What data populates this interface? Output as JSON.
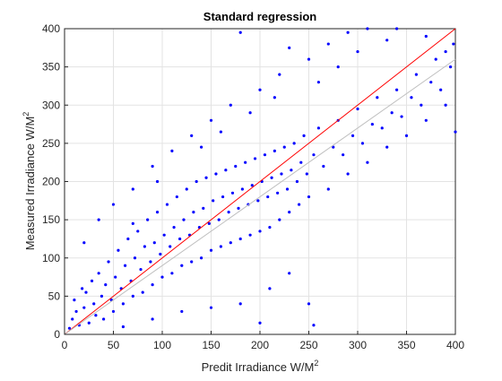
{
  "chart_data": {
    "type": "scatter",
    "title": "Standard regression",
    "xlabel": "Predit Irradiance W/M",
    "ylabel": "Measured Irradiance W/M",
    "unit_superscript": "2",
    "xlim": [
      0,
      400
    ],
    "ylim": [
      0,
      400
    ],
    "x_ticks": [
      0,
      50,
      100,
      150,
      200,
      250,
      300,
      350,
      400
    ],
    "y_ticks": [
      0,
      50,
      100,
      150,
      200,
      250,
      300,
      350,
      400
    ],
    "grid": true,
    "point_color": "#0000ff",
    "reference_lines": [
      {
        "color": "#ff0000",
        "x": [
          0,
          400
        ],
        "y": [
          0,
          400
        ]
      },
      {
        "color": "#bfbfbf",
        "x": [
          0,
          400
        ],
        "y": [
          0,
          360
        ]
      }
    ],
    "series": [
      {
        "points": [
          [
            5,
            8
          ],
          [
            8,
            20
          ],
          [
            10,
            45
          ],
          [
            12,
            30
          ],
          [
            15,
            12
          ],
          [
            18,
            60
          ],
          [
            20,
            35
          ],
          [
            22,
            55
          ],
          [
            25,
            15
          ],
          [
            28,
            70
          ],
          [
            30,
            40
          ],
          [
            32,
            25
          ],
          [
            35,
            80
          ],
          [
            38,
            50
          ],
          [
            40,
            20
          ],
          [
            42,
            65
          ],
          [
            45,
            95
          ],
          [
            48,
            45
          ],
          [
            50,
            30
          ],
          [
            52,
            75
          ],
          [
            55,
            110
          ],
          [
            58,
            60
          ],
          [
            60,
            40
          ],
          [
            62,
            90
          ],
          [
            65,
            125
          ],
          [
            68,
            70
          ],
          [
            70,
            50
          ],
          [
            72,
            100
          ],
          [
            75,
            135
          ],
          [
            78,
            85
          ],
          [
            80,
            55
          ],
          [
            82,
            115
          ],
          [
            85,
            150
          ],
          [
            88,
            95
          ],
          [
            90,
            65
          ],
          [
            92,
            120
          ],
          [
            95,
            160
          ],
          [
            98,
            105
          ],
          [
            100,
            75
          ],
          [
            102,
            130
          ],
          [
            105,
            170
          ],
          [
            108,
            115
          ],
          [
            110,
            80
          ],
          [
            112,
            140
          ],
          [
            115,
            180
          ],
          [
            118,
            125
          ],
          [
            120,
            90
          ],
          [
            122,
            150
          ],
          [
            125,
            190
          ],
          [
            128,
            130
          ],
          [
            130,
            95
          ],
          [
            132,
            160
          ],
          [
            135,
            200
          ],
          [
            138,
            140
          ],
          [
            140,
            100
          ],
          [
            142,
            165
          ],
          [
            145,
            205
          ],
          [
            148,
            145
          ],
          [
            150,
            110
          ],
          [
            152,
            175
          ],
          [
            155,
            210
          ],
          [
            158,
            150
          ],
          [
            160,
            115
          ],
          [
            162,
            180
          ],
          [
            165,
            215
          ],
          [
            168,
            160
          ],
          [
            170,
            120
          ],
          [
            172,
            185
          ],
          [
            175,
            220
          ],
          [
            178,
            165
          ],
          [
            180,
            125
          ],
          [
            182,
            190
          ],
          [
            185,
            225
          ],
          [
            188,
            170
          ],
          [
            190,
            130
          ],
          [
            192,
            195
          ],
          [
            195,
            230
          ],
          [
            198,
            175
          ],
          [
            200,
            135
          ],
          [
            202,
            200
          ],
          [
            205,
            235
          ],
          [
            208,
            180
          ],
          [
            210,
            140
          ],
          [
            212,
            205
          ],
          [
            215,
            240
          ],
          [
            218,
            185
          ],
          [
            220,
            150
          ],
          [
            222,
            210
          ],
          [
            225,
            245
          ],
          [
            228,
            190
          ],
          [
            230,
            160
          ],
          [
            232,
            215
          ],
          [
            235,
            250
          ],
          [
            238,
            200
          ],
          [
            240,
            170
          ],
          [
            242,
            225
          ],
          [
            245,
            260
          ],
          [
            248,
            210
          ],
          [
            250,
            180
          ],
          [
            255,
            235
          ],
          [
            260,
            270
          ],
          [
            265,
            220
          ],
          [
            270,
            190
          ],
          [
            275,
            245
          ],
          [
            280,
            280
          ],
          [
            285,
            235
          ],
          [
            290,
            210
          ],
          [
            295,
            260
          ],
          [
            300,
            295
          ],
          [
            305,
            250
          ],
          [
            310,
            225
          ],
          [
            315,
            275
          ],
          [
            320,
            310
          ],
          [
            325,
            270
          ],
          [
            330,
            245
          ],
          [
            335,
            290
          ],
          [
            340,
            320
          ],
          [
            345,
            285
          ],
          [
            350,
            260
          ],
          [
            355,
            310
          ],
          [
            360,
            340
          ],
          [
            365,
            300
          ],
          [
            370,
            280
          ],
          [
            375,
            330
          ],
          [
            380,
            360
          ],
          [
            385,
            320
          ],
          [
            390,
            300
          ],
          [
            395,
            350
          ],
          [
            398,
            380
          ],
          [
            400,
            265
          ],
          [
            60,
            10
          ],
          [
            90,
            20
          ],
          [
            120,
            30
          ],
          [
            150,
            35
          ],
          [
            180,
            40
          ],
          [
            200,
            15
          ],
          [
            210,
            60
          ],
          [
            230,
            80
          ],
          [
            250,
            40
          ],
          [
            255,
            12
          ],
          [
            20,
            120
          ],
          [
            35,
            150
          ],
          [
            50,
            170
          ],
          [
            70,
            190
          ],
          [
            90,
            220
          ],
          [
            110,
            240
          ],
          [
            130,
            260
          ],
          [
            150,
            280
          ],
          [
            170,
            300
          ],
          [
            200,
            320
          ],
          [
            220,
            340
          ],
          [
            250,
            360
          ],
          [
            270,
            380
          ],
          [
            290,
            395
          ],
          [
            310,
            400
          ],
          [
            180,
            395
          ],
          [
            230,
            375
          ],
          [
            70,
            145
          ],
          [
            95,
            200
          ],
          [
            140,
            245
          ],
          [
            160,
            265
          ],
          [
            190,
            290
          ],
          [
            215,
            310
          ],
          [
            260,
            330
          ],
          [
            280,
            350
          ],
          [
            300,
            370
          ],
          [
            330,
            385
          ],
          [
            340,
            400
          ],
          [
            370,
            390
          ],
          [
            390,
            370
          ]
        ]
      }
    ]
  }
}
